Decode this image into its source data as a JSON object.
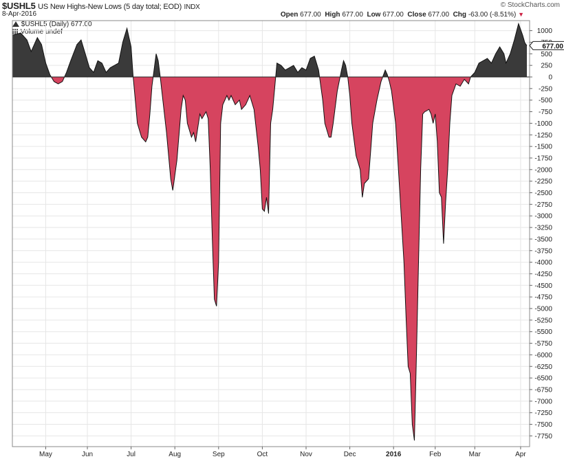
{
  "header": {
    "symbol": "$USHL5",
    "description": "US New Highs-New Lows (5 day total; EOD)",
    "exchange": "INDX",
    "date": "8-Apr-2016",
    "logo": "© StockCharts.com",
    "open_label": "Open",
    "open": "677.00",
    "high_label": "High",
    "high": "677.00",
    "low_label": "Low",
    "low": "677.00",
    "close_label": "Close",
    "close": "677.00",
    "chg_label": "Chg",
    "chg": "-63.00 (-8.51%)"
  },
  "legend": {
    "series": "$USHL5 (Daily) 677.00",
    "volume": "Volume undef"
  },
  "last_value_tag": "677.00",
  "colors": {
    "positive": "#3a3a3a",
    "negative": "#d6445f",
    "grid": "#e6e6e6",
    "line": "#111111"
  },
  "chart_data": {
    "type": "area",
    "series_name": "$USHL5",
    "baseline": 0,
    "ylim": [
      -7900,
      1200
    ],
    "yticks": [
      1000,
      750,
      500,
      250,
      0,
      -250,
      -500,
      -750,
      -1000,
      -1250,
      -1500,
      -1750,
      -2000,
      -2250,
      -2500,
      -2750,
      -3000,
      -3250,
      -3500,
      -3750,
      -4000,
      -4250,
      -4500,
      -4750,
      -5000,
      -5250,
      -5500,
      -5750,
      -6000,
      -6250,
      -6500,
      -6750,
      -7000,
      -7250,
      -7500,
      -7750
    ],
    "xlim": [
      0,
      252
    ],
    "xtick_labels": [
      {
        "label": "May",
        "t": 16
      },
      {
        "label": "Jun",
        "t": 36
      },
      {
        "label": "Jul",
        "t": 57
      },
      {
        "label": "Aug",
        "t": 78
      },
      {
        "label": "Sep",
        "t": 99
      },
      {
        "label": "Oct",
        "t": 120
      },
      {
        "label": "Nov",
        "t": 141
      },
      {
        "label": "Dec",
        "t": 162
      },
      {
        "label": "2016",
        "t": 183
      },
      {
        "label": "Feb",
        "t": 203
      },
      {
        "label": "Mar",
        "t": 222
      },
      {
        "label": "Apr",
        "t": 244
      }
    ],
    "points": [
      [
        0,
        900
      ],
      [
        4,
        950
      ],
      [
        7,
        800
      ],
      [
        9,
        550
      ],
      [
        12,
        850
      ],
      [
        14,
        700
      ],
      [
        16,
        300
      ],
      [
        18,
        50
      ],
      [
        20,
        -100
      ],
      [
        22,
        -150
      ],
      [
        24,
        -100
      ],
      [
        26,
        100
      ],
      [
        28,
        350
      ],
      [
        31,
        700
      ],
      [
        33,
        800
      ],
      [
        35,
        500
      ],
      [
        37,
        200
      ],
      [
        39,
        100
      ],
      [
        41,
        350
      ],
      [
        43,
        300
      ],
      [
        45,
        100
      ],
      [
        47,
        200
      ],
      [
        49,
        250
      ],
      [
        51,
        300
      ],
      [
        53,
        750
      ],
      [
        55,
        1050
      ],
      [
        57,
        650
      ],
      [
        58,
        0
      ],
      [
        59,
        -500
      ],
      [
        60,
        -1000
      ],
      [
        62,
        -1300
      ],
      [
        64,
        -1400
      ],
      [
        65,
        -1300
      ],
      [
        66,
        -800
      ],
      [
        67,
        -200
      ],
      [
        69,
        500
      ],
      [
        70,
        350
      ],
      [
        71,
        0
      ],
      [
        72,
        -400
      ],
      [
        74,
        -1200
      ],
      [
        76,
        -2200
      ],
      [
        77,
        -2450
      ],
      [
        79,
        -1800
      ],
      [
        81,
        -700
      ],
      [
        82,
        -400
      ],
      [
        83,
        -500
      ],
      [
        84,
        -1000
      ],
      [
        86,
        -1300
      ],
      [
        87,
        -1200
      ],
      [
        88,
        -1400
      ],
      [
        90,
        -800
      ],
      [
        91,
        -900
      ],
      [
        93,
        -750
      ],
      [
        94,
        -900
      ],
      [
        95,
        -2000
      ],
      [
        96,
        -3500
      ],
      [
        97,
        -4800
      ],
      [
        98,
        -4950
      ],
      [
        99,
        -4000
      ],
      [
        100,
        -1000
      ],
      [
        101,
        -600
      ],
      [
        103,
        -400
      ],
      [
        104,
        -500
      ],
      [
        105,
        -400
      ],
      [
        107,
        -600
      ],
      [
        109,
        -500
      ],
      [
        110,
        -700
      ],
      [
        112,
        -600
      ],
      [
        114,
        -400
      ],
      [
        116,
        -700
      ],
      [
        118,
        -1500
      ],
      [
        119,
        -2000
      ],
      [
        120,
        -2850
      ],
      [
        121,
        -2900
      ],
      [
        122,
        -2600
      ],
      [
        123,
        -2950
      ],
      [
        124,
        -1000
      ],
      [
        125,
        -700
      ],
      [
        126,
        -200
      ],
      [
        127,
        300
      ],
      [
        129,
        250
      ],
      [
        131,
        150
      ],
      [
        133,
        200
      ],
      [
        135,
        250
      ],
      [
        137,
        100
      ],
      [
        139,
        200
      ],
      [
        141,
        150
      ],
      [
        143,
        400
      ],
      [
        145,
        450
      ],
      [
        147,
        150
      ],
      [
        149,
        -500
      ],
      [
        150,
        -1000
      ],
      [
        152,
        -1300
      ],
      [
        153,
        -1300
      ],
      [
        154,
        -1000
      ],
      [
        156,
        -300
      ],
      [
        158,
        150
      ],
      [
        159,
        350
      ],
      [
        160,
        250
      ],
      [
        161,
        0
      ],
      [
        162,
        -400
      ],
      [
        163,
        -1000
      ],
      [
        165,
        -1700
      ],
      [
        167,
        -2000
      ],
      [
        168,
        -2600
      ],
      [
        169,
        -2300
      ],
      [
        171,
        -2200
      ],
      [
        172,
        -1600
      ],
      [
        173,
        -1000
      ],
      [
        175,
        -500
      ],
      [
        177,
        -100
      ],
      [
        179,
        150
      ],
      [
        180,
        50
      ],
      [
        181,
        -100
      ],
      [
        182,
        -300
      ],
      [
        184,
        -1000
      ],
      [
        186,
        -2500
      ],
      [
        188,
        -4000
      ],
      [
        189,
        -5200
      ],
      [
        190,
        -6250
      ],
      [
        191,
        -6400
      ],
      [
        192,
        -7500
      ],
      [
        193,
        -7850
      ],
      [
        194,
        -6000
      ],
      [
        195,
        -4000
      ],
      [
        196,
        -2000
      ],
      [
        197,
        -800
      ],
      [
        198,
        -750
      ],
      [
        200,
        -700
      ],
      [
        201,
        -800
      ],
      [
        202,
        -1000
      ],
      [
        203,
        -800
      ],
      [
        204,
        -1400
      ],
      [
        205,
        -2500
      ],
      [
        206,
        -2600
      ],
      [
        207,
        -3600
      ],
      [
        208,
        -2700
      ],
      [
        209,
        -2000
      ],
      [
        210,
        -1000
      ],
      [
        211,
        -400
      ],
      [
        213,
        -150
      ],
      [
        215,
        -200
      ],
      [
        217,
        -50
      ],
      [
        219,
        -150
      ],
      [
        220,
        0
      ],
      [
        222,
        100
      ],
      [
        224,
        300
      ],
      [
        226,
        350
      ],
      [
        228,
        400
      ],
      [
        230,
        300
      ],
      [
        232,
        500
      ],
      [
        234,
        650
      ],
      [
        236,
        500
      ],
      [
        237,
        300
      ],
      [
        239,
        500
      ],
      [
        241,
        800
      ],
      [
        243,
        1150
      ],
      [
        245,
        900
      ],
      [
        246,
        740
      ],
      [
        247,
        677
      ]
    ]
  }
}
